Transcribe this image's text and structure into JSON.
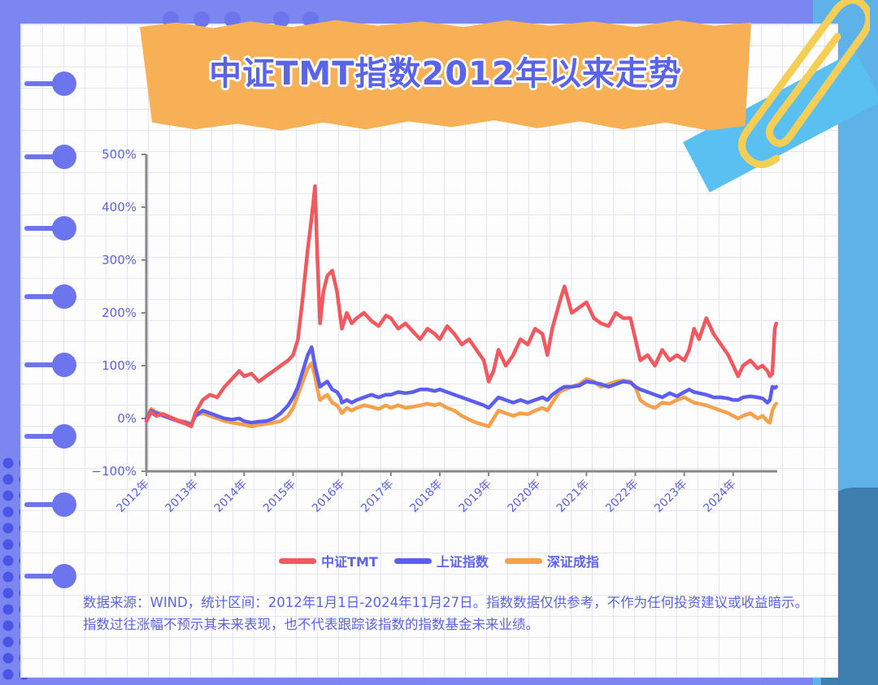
{
  "title": "中证TMT指数2012年以来走势",
  "note": "数据来源：WIND，统计区间：2012年1月1日-2024年11月27日。指数数据仅供参考，不作为任何投资建议或收益暗示。指数过往涨幅不预示其未来表现，也不代表跟踪该指数的指数基金未来业绩。",
  "colors": {
    "tmt": "#f2595f",
    "sh": "#5c5ef0",
    "sz": "#f5a04a",
    "axis": "#888888",
    "tick": "#5b63e8"
  },
  "chart_data": {
    "type": "line",
    "title": "中证TMT指数2012年以来走势",
    "xlabel": "",
    "ylabel": "",
    "x_ticks": [
      "2012年",
      "2013年",
      "2014年",
      "2015年",
      "2016年",
      "2017年",
      "2018年",
      "2019年",
      "2020年",
      "2021年",
      "2022年",
      "2023年",
      "2024年"
    ],
    "y_ticks": [
      "500%",
      "400%",
      "300%",
      "200%",
      "100%",
      "0%",
      "−100%"
    ],
    "ylim": [
      -100,
      500
    ],
    "xlim": [
      2012.0,
      2024.9
    ],
    "legend_position": "bottom",
    "series": [
      {
        "name": "中证TMT",
        "color": "#f2595f",
        "x": [
          2012.0,
          2012.1,
          2012.2,
          2012.35,
          2012.5,
          2012.65,
          2012.8,
          2012.92,
          2013.0,
          2013.15,
          2013.3,
          2013.45,
          2013.6,
          2013.75,
          2013.9,
          2014.0,
          2014.15,
          2014.3,
          2014.45,
          2014.6,
          2014.75,
          2014.9,
          2015.0,
          2015.1,
          2015.2,
          2015.3,
          2015.38,
          2015.45,
          2015.5,
          2015.55,
          2015.62,
          2015.7,
          2015.8,
          2015.9,
          2015.97,
          2016.0,
          2016.1,
          2016.2,
          2016.3,
          2016.45,
          2016.6,
          2016.75,
          2016.9,
          2017.0,
          2017.15,
          2017.3,
          2017.45,
          2017.6,
          2017.75,
          2017.9,
          2018.0,
          2018.15,
          2018.3,
          2018.45,
          2018.6,
          2018.75,
          2018.9,
          2019.0,
          2019.1,
          2019.2,
          2019.35,
          2019.5,
          2019.65,
          2019.8,
          2019.95,
          2020.1,
          2020.2,
          2020.3,
          2020.45,
          2020.55,
          2020.7,
          2020.85,
          2021.0,
          2021.15,
          2021.3,
          2021.45,
          2021.6,
          2021.75,
          2021.9,
          2022.0,
          2022.1,
          2022.25,
          2022.4,
          2022.55,
          2022.7,
          2022.85,
          2023.0,
          2023.1,
          2023.2,
          2023.3,
          2023.45,
          2023.6,
          2023.75,
          2023.9,
          2024.0,
          2024.1,
          2024.2,
          2024.35,
          2024.5,
          2024.6,
          2024.7,
          2024.75,
          2024.8,
          2024.85,
          2024.88
        ],
        "values": [
          -5,
          12,
          5,
          8,
          2,
          -5,
          -10,
          -15,
          10,
          35,
          45,
          40,
          60,
          75,
          90,
          80,
          85,
          70,
          80,
          90,
          100,
          110,
          120,
          150,
          230,
          320,
          380,
          440,
          300,
          180,
          240,
          270,
          280,
          240,
          190,
          170,
          200,
          180,
          190,
          200,
          185,
          175,
          195,
          190,
          170,
          180,
          165,
          150,
          170,
          160,
          150,
          175,
          160,
          140,
          150,
          130,
          110,
          70,
          90,
          130,
          100,
          120,
          150,
          140,
          170,
          160,
          120,
          170,
          220,
          250,
          200,
          210,
          220,
          190,
          180,
          175,
          200,
          190,
          190,
          150,
          110,
          120,
          100,
          130,
          110,
          120,
          110,
          130,
          170,
          150,
          190,
          160,
          140,
          120,
          100,
          80,
          100,
          110,
          95,
          100,
          90,
          80,
          85,
          170,
          180
        ]
      },
      {
        "name": "上证指数",
        "color": "#5c5ef0",
        "x": [
          2012.0,
          2012.1,
          2012.2,
          2012.35,
          2012.5,
          2012.65,
          2012.8,
          2012.92,
          2013.0,
          2013.15,
          2013.3,
          2013.45,
          2013.6,
          2013.75,
          2013.9,
          2014.0,
          2014.15,
          2014.3,
          2014.45,
          2014.6,
          2014.75,
          2014.9,
          2015.0,
          2015.1,
          2015.2,
          2015.3,
          2015.38,
          2015.45,
          2015.5,
          2015.55,
          2015.62,
          2015.7,
          2015.8,
          2015.9,
          2015.97,
          2016.0,
          2016.1,
          2016.2,
          2016.3,
          2016.45,
          2016.6,
          2016.75,
          2016.9,
          2017.0,
          2017.15,
          2017.3,
          2017.45,
          2017.6,
          2017.75,
          2017.9,
          2018.0,
          2018.15,
          2018.3,
          2018.45,
          2018.6,
          2018.75,
          2018.9,
          2019.0,
          2019.1,
          2019.2,
          2019.35,
          2019.5,
          2019.65,
          2019.8,
          2019.95,
          2020.1,
          2020.2,
          2020.3,
          2020.45,
          2020.55,
          2020.7,
          2020.85,
          2021.0,
          2021.15,
          2021.3,
          2021.45,
          2021.6,
          2021.75,
          2021.9,
          2022.0,
          2022.1,
          2022.25,
          2022.4,
          2022.55,
          2022.7,
          2022.85,
          2023.0,
          2023.1,
          2023.2,
          2023.3,
          2023.45,
          2023.6,
          2023.75,
          2023.9,
          2024.0,
          2024.1,
          2024.2,
          2024.35,
          2024.5,
          2024.6,
          2024.7,
          2024.75,
          2024.8,
          2024.85,
          2024.88
        ],
        "values": [
          0,
          15,
          10,
          5,
          0,
          -5,
          -8,
          -12,
          5,
          15,
          10,
          5,
          0,
          -2,
          0,
          -5,
          -8,
          -6,
          -5,
          0,
          10,
          25,
          40,
          60,
          90,
          120,
          135,
          100,
          80,
          60,
          65,
          70,
          55,
          50,
          40,
          30,
          35,
          30,
          35,
          40,
          45,
          40,
          45,
          45,
          50,
          48,
          50,
          55,
          55,
          52,
          55,
          50,
          45,
          40,
          35,
          30,
          25,
          20,
          30,
          40,
          35,
          30,
          35,
          30,
          35,
          40,
          35,
          45,
          55,
          60,
          60,
          62,
          70,
          68,
          65,
          60,
          65,
          70,
          68,
          60,
          55,
          50,
          45,
          40,
          48,
          42,
          50,
          55,
          50,
          48,
          45,
          40,
          40,
          38,
          35,
          35,
          40,
          42,
          40,
          38,
          30,
          35,
          60,
          58,
          60
        ]
      },
      {
        "name": "深证成指",
        "color": "#f5a04a",
        "x": [
          2012.0,
          2012.1,
          2012.2,
          2012.35,
          2012.5,
          2012.65,
          2012.8,
          2012.92,
          2013.0,
          2013.15,
          2013.3,
          2013.45,
          2013.6,
          2013.75,
          2013.9,
          2014.0,
          2014.15,
          2014.3,
          2014.45,
          2014.6,
          2014.75,
          2014.9,
          2015.0,
          2015.1,
          2015.2,
          2015.3,
          2015.38,
          2015.45,
          2015.5,
          2015.55,
          2015.62,
          2015.7,
          2015.8,
          2015.9,
          2015.97,
          2016.0,
          2016.1,
          2016.2,
          2016.3,
          2016.45,
          2016.6,
          2016.75,
          2016.9,
          2017.0,
          2017.15,
          2017.3,
          2017.45,
          2017.6,
          2017.75,
          2017.9,
          2018.0,
          2018.15,
          2018.3,
          2018.45,
          2018.6,
          2018.75,
          2018.9,
          2019.0,
          2019.1,
          2019.2,
          2019.35,
          2019.5,
          2019.65,
          2019.8,
          2019.95,
          2020.1,
          2020.2,
          2020.3,
          2020.45,
          2020.55,
          2020.7,
          2020.85,
          2021.0,
          2021.15,
          2021.3,
          2021.45,
          2021.6,
          2021.75,
          2021.9,
          2022.0,
          2022.1,
          2022.25,
          2022.4,
          2022.55,
          2022.7,
          2022.85,
          2023.0,
          2023.1,
          2023.2,
          2023.3,
          2023.45,
          2023.6,
          2023.75,
          2023.9,
          2024.0,
          2024.1,
          2024.2,
          2024.35,
          2024.5,
          2024.6,
          2024.7,
          2024.75,
          2024.8,
          2024.85,
          2024.88
        ],
        "values": [
          0,
          18,
          12,
          8,
          2,
          -3,
          -6,
          -10,
          5,
          10,
          5,
          0,
          -5,
          -8,
          -10,
          -12,
          -15,
          -12,
          -10,
          -8,
          -5,
          5,
          20,
          45,
          70,
          95,
          105,
          80,
          55,
          35,
          40,
          45,
          30,
          25,
          15,
          10,
          20,
          15,
          20,
          25,
          22,
          18,
          25,
          20,
          25,
          20,
          22,
          25,
          28,
          25,
          28,
          20,
          15,
          5,
          -2,
          -8,
          -12,
          -15,
          0,
          15,
          10,
          5,
          10,
          8,
          15,
          20,
          15,
          30,
          50,
          55,
          60,
          65,
          75,
          70,
          60,
          65,
          70,
          72,
          70,
          60,
          35,
          25,
          20,
          30,
          28,
          35,
          40,
          35,
          30,
          28,
          25,
          20,
          15,
          10,
          5,
          0,
          5,
          10,
          0,
          5,
          -5,
          -8,
          15,
          25,
          28
        ]
      }
    ]
  }
}
